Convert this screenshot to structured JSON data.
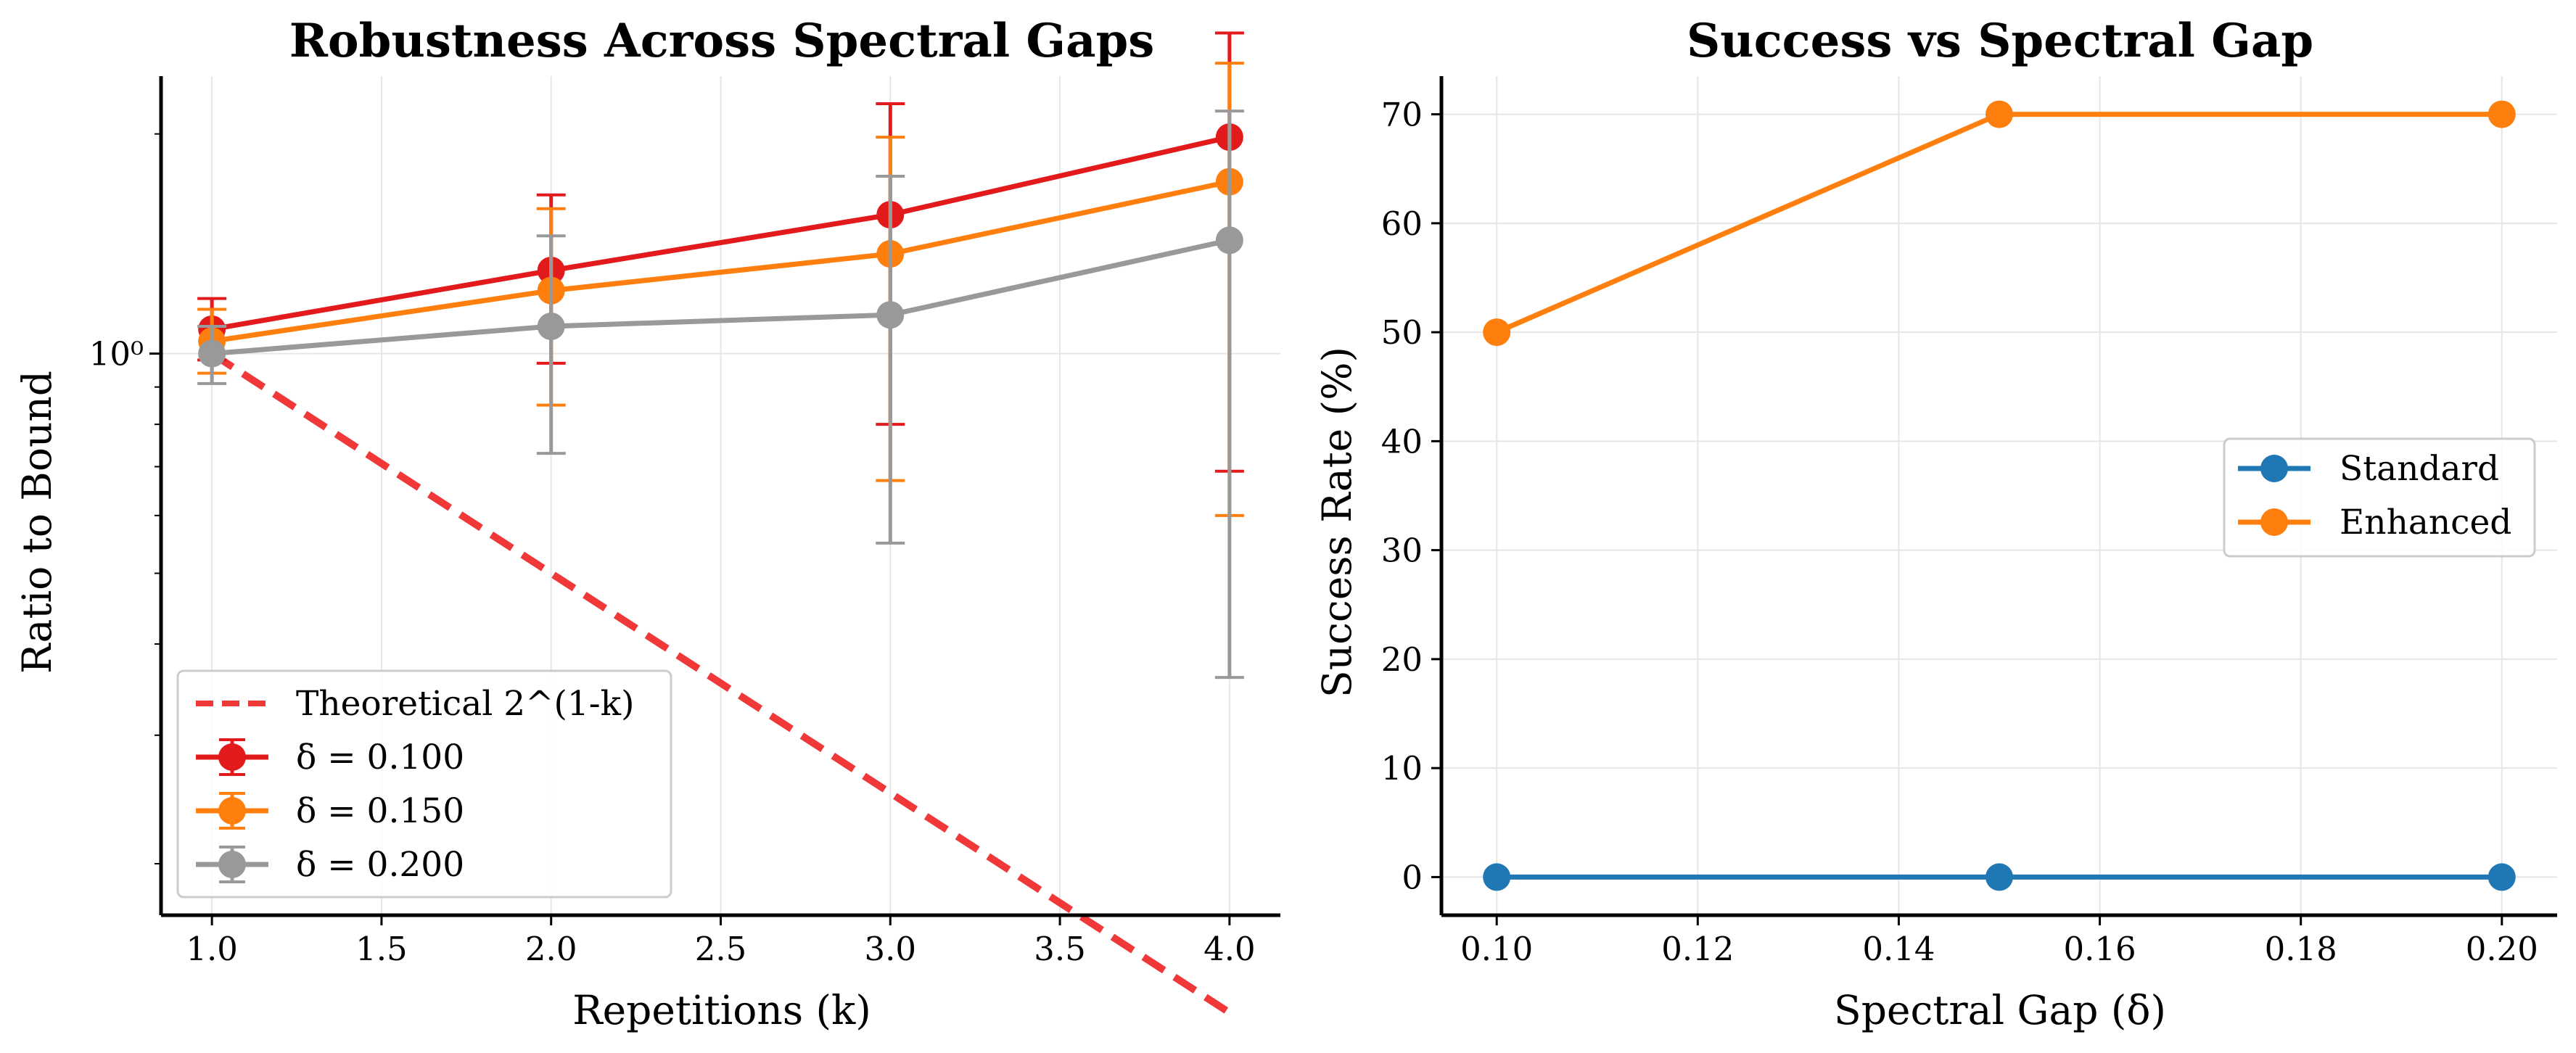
{
  "chart_data": [
    {
      "type": "line",
      "title": "Robustness Across Spectral Gaps",
      "xlabel": "Repetitions (k)",
      "ylabel": "Ratio to Bound",
      "xlim": [
        0.85,
        4.15
      ],
      "ylim": [
        0.17,
        2.4
      ],
      "yscale": "log",
      "x_ticks": [
        "1.0",
        "1.5",
        "2.0",
        "2.5",
        "3.0",
        "3.5",
        "4.0"
      ],
      "y_tick_label": "10⁰",
      "grid": true,
      "legend_position": "lower-left",
      "series": [
        {
          "name": "Theoretical 2^(1-k)",
          "color": "#f03838",
          "style": "dashed",
          "x": [
            1,
            2,
            3,
            4
          ],
          "y": [
            1.0,
            0.5,
            0.25,
            0.125
          ]
        },
        {
          "name": "δ = 0.100",
          "color": "#e31a1c",
          "x": [
            1,
            2,
            3,
            4
          ],
          "y": [
            1.08,
            1.3,
            1.55,
            1.98
          ],
          "err_low": [
            0.98,
            0.97,
            0.8,
            0.69
          ],
          "err_high": [
            1.19,
            1.65,
            2.2,
            2.75
          ]
        },
        {
          "name": "δ = 0.150",
          "color": "#ff7f0e",
          "x": [
            1,
            2,
            3,
            4
          ],
          "y": [
            1.04,
            1.22,
            1.37,
            1.72
          ],
          "err_low": [
            0.94,
            0.85,
            0.67,
            0.6
          ],
          "err_high": [
            1.15,
            1.58,
            1.98,
            2.5
          ]
        },
        {
          "name": "δ = 0.200",
          "color": "#999999",
          "x": [
            1,
            2,
            3,
            4
          ],
          "y": [
            1.0,
            1.09,
            1.13,
            1.43
          ],
          "err_low": [
            0.91,
            0.73,
            0.55,
            0.36
          ],
          "err_high": [
            1.09,
            1.45,
            1.75,
            2.15
          ]
        }
      ]
    },
    {
      "type": "line",
      "title": "Success vs Spectral Gap",
      "xlabel": "Spectral Gap (δ)",
      "ylabel": "Success Rate (%)",
      "xlim": [
        0.0945,
        0.2055
      ],
      "ylim": [
        -3.5,
        73.5
      ],
      "x_ticks": [
        "0.10",
        "0.12",
        "0.14",
        "0.16",
        "0.18",
        "0.20"
      ],
      "y_ticks": [
        "0",
        "10",
        "20",
        "30",
        "40",
        "50",
        "60",
        "70"
      ],
      "grid": true,
      "legend_position": "center-right",
      "series": [
        {
          "name": "Standard",
          "color": "#1f77b4",
          "x": [
            0.1,
            0.15,
            0.2
          ],
          "y": [
            0,
            0,
            0
          ]
        },
        {
          "name": "Enhanced",
          "color": "#ff7f0e",
          "x": [
            0.1,
            0.15,
            0.2
          ],
          "y": [
            50,
            70,
            70
          ]
        }
      ]
    }
  ]
}
